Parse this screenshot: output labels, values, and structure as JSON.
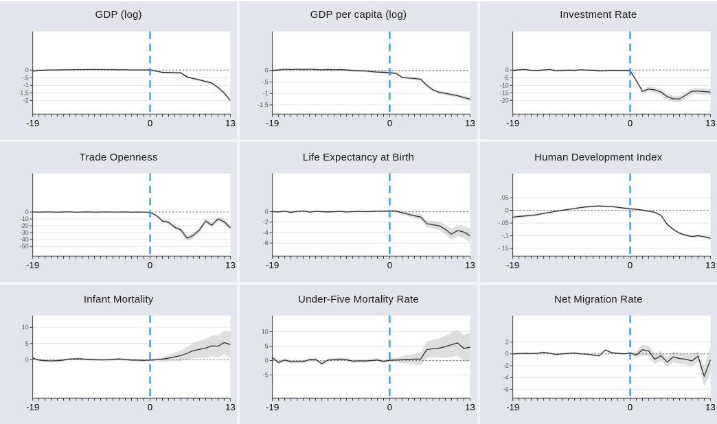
{
  "style": {
    "background": "#e2e5ec",
    "divider": "#f1f4f8",
    "plot_bg": "#ffffff",
    "grid": "#e6e6e6",
    "band": "#bdbdbd",
    "line": "#2d2d2d",
    "zero_line": "#7a7a7a",
    "event_line": "#1E90FF",
    "axis": "#3a3a3a",
    "xtick_text": "#000000",
    "ytick_text": "#555555"
  },
  "chart_data": {
    "type": "line",
    "x_min": -19,
    "x_max": 13,
    "x_labeled": [
      {
        "v": -19,
        "label": "-19"
      },
      {
        "v": 0,
        "label": "0"
      },
      {
        "v": 13,
        "label": "13"
      }
    ],
    "event_line_x": 0,
    "ref_line_y": 0,
    "grid": "horizontal only",
    "legend": "none",
    "panels": [
      {
        "title": "GDP (log)",
        "ylim": [
          2.55,
          -2.9
        ],
        "yticks": [
          {
            "v": 0,
            "label": "0"
          },
          {
            "v": -0.5,
            "label": "-.5"
          },
          {
            "v": -1,
            "label": "-1"
          },
          {
            "v": -1.5,
            "label": "-1.5"
          },
          {
            "v": -2,
            "label": "-2"
          }
        ],
        "values": [
          -0.07,
          -0.02,
          0,
          0.01,
          0.01,
          0.02,
          0.02,
          0.03,
          0.03,
          0.04,
          0.04,
          0.04,
          0.03,
          0.03,
          0.02,
          0.02,
          0.01,
          0.01,
          0.01,
          0.02,
          -0.07,
          -0.15,
          -0.16,
          -0.17,
          -0.18,
          -0.45,
          -0.55,
          -0.65,
          -0.75,
          -0.85,
          -1.15,
          -1.5,
          -2.0
        ],
        "ci": [
          0.06,
          0.05,
          0.05,
          0.05,
          0.05,
          0.05,
          0.05,
          0.05,
          0.05,
          0.05,
          0.05,
          0.05,
          0.05,
          0.05,
          0.05,
          0.05,
          0.05,
          0.05,
          0.05,
          0.05,
          0.06,
          0.07,
          0.07,
          0.07,
          0.07,
          0.08,
          0.08,
          0.08,
          0.09,
          0.09,
          0.09,
          0.1,
          0.1
        ]
      },
      {
        "title": "GDP per capita (log)",
        "ylim": [
          1.7,
          -1.9
        ],
        "yticks": [
          {
            "v": 0,
            "label": "0"
          },
          {
            "v": -0.5,
            "label": "-.5"
          },
          {
            "v": -1,
            "label": "-1"
          },
          {
            "v": -1.5,
            "label": "-1.5"
          }
        ],
        "values": [
          0,
          0.02,
          0.05,
          0.04,
          0.05,
          0.04,
          0.05,
          0.04,
          0.03,
          0.04,
          0.03,
          0.04,
          0.02,
          0,
          -0.01,
          -0.02,
          -0.05,
          -0.07,
          -0.08,
          -0.1,
          -0.12,
          -0.3,
          -0.33,
          -0.35,
          -0.38,
          -0.65,
          -0.85,
          -0.95,
          -1,
          -1.05,
          -1.1,
          -1.18,
          -1.25
        ],
        "ci": [
          0.05,
          0.05,
          0.05,
          0.05,
          0.05,
          0.05,
          0.05,
          0.05,
          0.05,
          0.05,
          0.05,
          0.05,
          0.05,
          0.05,
          0.05,
          0.05,
          0.05,
          0.05,
          0.05,
          0.05,
          0.06,
          0.06,
          0.06,
          0.06,
          0.07,
          0.07,
          0.07,
          0.07,
          0.07,
          0.07,
          0.07,
          0.08,
          0.08
        ]
      },
      {
        "title": "Investment Rate",
        "ylim": [
          25.5,
          -29
        ],
        "yticks": [
          {
            "v": 0,
            "label": "0"
          },
          {
            "v": -5,
            "label": "-5"
          },
          {
            "v": -10,
            "label": "-10"
          },
          {
            "v": -15,
            "label": "-15"
          },
          {
            "v": -20,
            "label": "-20"
          }
        ],
        "values": [
          -0.3,
          0.2,
          0.4,
          -0.2,
          -0.3,
          0.1,
          0.4,
          -0.4,
          -0.3,
          0,
          -0.2,
          0.2,
          0,
          -0.1,
          -0.5,
          -0.4,
          -0.2,
          -0.3,
          -0.2,
          -0.3,
          -7,
          -14,
          -12.5,
          -13,
          -14.5,
          -17.5,
          -19,
          -19,
          -16.5,
          -14,
          -13.8,
          -14.2,
          -14.5
        ],
        "ci": [
          0.5,
          0.5,
          0.5,
          0.5,
          0.5,
          0.5,
          0.5,
          0.5,
          0.5,
          0.5,
          0.5,
          0.5,
          0.5,
          0.5,
          0.5,
          0.5,
          0.5,
          0.5,
          0.5,
          0.5,
          1.2,
          1.5,
          1.6,
          1.7,
          1.8,
          1.9,
          2,
          2,
          2,
          2,
          2,
          2,
          2.2
        ]
      },
      {
        "title": "Trade Openness",
        "ylim": [
          56,
          -64
        ],
        "yticks": [
          {
            "v": 0,
            "label": "0"
          },
          {
            "v": -10,
            "label": "-10"
          },
          {
            "v": -20,
            "label": "-20"
          },
          {
            "v": -30,
            "label": "-30"
          },
          {
            "v": -40,
            "label": "-40"
          },
          {
            "v": -50,
            "label": "-50"
          }
        ],
        "values": [
          0.2,
          -0.1,
          0.1,
          0,
          -0.2,
          0.1,
          0.3,
          -0.2,
          0,
          0.1,
          -0.1,
          0,
          0.2,
          -0.1,
          0,
          0.1,
          -0.2,
          0,
          -0.1,
          -0.5,
          -5,
          -13,
          -15,
          -22,
          -26,
          -38,
          -34,
          -26,
          -13,
          -19,
          -10,
          -14,
          -23
        ],
        "ci": [
          0.8,
          0.8,
          0.8,
          0.8,
          0.8,
          0.8,
          0.8,
          0.8,
          0.8,
          0.8,
          0.8,
          0.8,
          0.8,
          0.8,
          0.8,
          0.8,
          0.8,
          0.8,
          0.8,
          0.8,
          2,
          2.5,
          3,
          3,
          3.5,
          4,
          4,
          4,
          3.5,
          3.5,
          3.5,
          3.5,
          4
        ]
      },
      {
        "title": "Life Expectancy at Birth",
        "ylim": [
          7.3,
          -8.5
        ],
        "yticks": [
          {
            "v": 0,
            "label": "0"
          },
          {
            "v": -2,
            "label": "-2"
          },
          {
            "v": -4,
            "label": "-4"
          },
          {
            "v": -6,
            "label": "-6"
          }
        ],
        "values": [
          0,
          -0.05,
          0.1,
          -0.15,
          0.05,
          0.15,
          -0.1,
          0.05,
          0,
          -0.05,
          0,
          0.05,
          -0.05,
          0,
          0.05,
          0,
          0.05,
          0.1,
          0.1,
          0.15,
          0.1,
          -0.2,
          -0.5,
          -0.8,
          -1,
          -2.3,
          -2.5,
          -2.7,
          -3.4,
          -4.3,
          -3.6,
          -3.9,
          -4.6
        ],
        "ci": [
          0.15,
          0.15,
          0.15,
          0.15,
          0.15,
          0.15,
          0.15,
          0.15,
          0.15,
          0.15,
          0.15,
          0.15,
          0.15,
          0.15,
          0.15,
          0.15,
          0.15,
          0.15,
          0.15,
          0.15,
          0.3,
          0.35,
          0.4,
          0.45,
          0.5,
          0.6,
          0.7,
          0.8,
          0.9,
          1,
          1.1,
          1.2,
          1.3
        ]
      },
      {
        "title": "Human Development Index",
        "ylim": [
          0.145,
          -0.18
        ],
        "yticks": [
          {
            "v": 0.05,
            "label": ".05"
          },
          {
            "v": 0,
            "label": "0"
          },
          {
            "v": -0.05,
            "label": "-.05"
          },
          {
            "v": -0.1,
            "label": "-.1"
          },
          {
            "v": -0.15,
            "label": "-.15"
          }
        ],
        "values": [
          -0.027,
          -0.024,
          -0.022,
          -0.02,
          -0.017,
          -0.012,
          -0.008,
          -0.004,
          0,
          0.004,
          0.007,
          0.011,
          0.014,
          0.016,
          0.017,
          0.016,
          0.015,
          0.012,
          0.009,
          0.006,
          0.004,
          0.001,
          -0.003,
          -0.008,
          -0.02,
          -0.055,
          -0.075,
          -0.09,
          -0.098,
          -0.103,
          -0.1,
          -0.104,
          -0.11
        ],
        "ci": [
          0.007,
          0.006,
          0.005,
          0.005,
          0.005,
          0.004,
          0.004,
          0.004,
          0.004,
          0.004,
          0.004,
          0.004,
          0.004,
          0.004,
          0.004,
          0.004,
          0.004,
          0.004,
          0.004,
          0.004,
          0.004,
          0.004,
          0.004,
          0.004,
          0.004,
          0.005,
          0.005,
          0.005,
          0.005,
          0.005,
          0.005,
          0.006,
          0.006
        ]
      },
      {
        "title": "Infant Mortality",
        "ylim": [
          13.7,
          -11.9
        ],
        "yticks": [
          {
            "v": 10,
            "label": "10"
          },
          {
            "v": 5,
            "label": "5"
          },
          {
            "v": 0,
            "label": "0"
          }
        ],
        "values": [
          0.5,
          -0.1,
          -0.3,
          -0.35,
          -0.3,
          -0.1,
          0.2,
          0.3,
          0.25,
          0.1,
          0,
          -0.05,
          -0.05,
          0.1,
          0.25,
          0.05,
          -0.1,
          -0.15,
          -0.2,
          -0.15,
          0,
          0.2,
          0.5,
          0.9,
          1.3,
          2,
          2.8,
          3.2,
          3.6,
          4.3,
          4.2,
          5.3,
          4.7
        ],
        "ci": [
          0.4,
          0.4,
          0.4,
          0.4,
          0.4,
          0.4,
          0.4,
          0.4,
          0.4,
          0.4,
          0.4,
          0.4,
          0.4,
          0.4,
          0.4,
          0.4,
          0.4,
          0.4,
          0.4,
          0.4,
          0.5,
          0.7,
          1,
          1.3,
          1.6,
          2,
          2.3,
          2.6,
          2.9,
          3.2,
          3.4,
          3.6,
          4
        ]
      },
      {
        "title": "Under-Five Mortality Rate",
        "ylim": [
          15.6,
          -13
        ],
        "yticks": [
          {
            "v": 10,
            "label": "10"
          },
          {
            "v": 5,
            "label": "5"
          },
          {
            "v": 0,
            "label": "0"
          },
          {
            "v": -5,
            "label": "-5"
          }
        ],
        "values": [
          1,
          -0.7,
          0.2,
          -0.4,
          -0.3,
          -0.35,
          0.3,
          0.4,
          -1.1,
          0.2,
          0.3,
          0.5,
          0.3,
          -0.2,
          -0.1,
          -0.15,
          0,
          0.2,
          -0.3,
          0.1,
          0.2,
          0.3,
          0.4,
          0.5,
          0.5,
          3.8,
          4.1,
          4.3,
          4.8,
          5.5,
          6.1,
          4.2,
          4.6
        ],
        "ci": [
          0.6,
          0.6,
          0.6,
          0.6,
          0.6,
          0.6,
          0.6,
          0.6,
          0.6,
          0.6,
          0.6,
          0.6,
          0.6,
          0.6,
          0.6,
          0.6,
          0.6,
          0.6,
          0.6,
          0.6,
          0.8,
          1.2,
          1.5,
          1.8,
          2.2,
          2.8,
          3,
          3.3,
          3.8,
          4.2,
          4.4,
          4.6,
          5
        ]
      },
      {
        "title": "Net Migration Rate",
        "ylim": [
          6.5,
          -7.5
        ],
        "yticks": [
          {
            "v": 2,
            "label": "2"
          },
          {
            "v": 0,
            "label": "0"
          },
          {
            "v": -2,
            "label": "-2"
          },
          {
            "v": -4,
            "label": "-4"
          },
          {
            "v": -6,
            "label": "-6"
          }
        ],
        "values": [
          0,
          0.05,
          0.1,
          0.05,
          0.1,
          0.25,
          0.1,
          -0.1,
          0,
          0.1,
          0.15,
          0,
          -0.05,
          -0.2,
          -0.35,
          0.65,
          0.2,
          0.1,
          0,
          0.15,
          -0.2,
          0.7,
          0.5,
          -0.9,
          -0.3,
          -1.4,
          -0.5,
          -0.8,
          -0.9,
          -1.2,
          -0.4,
          -3.8,
          -1
        ],
        "ci": [
          0.15,
          0.15,
          0.15,
          0.15,
          0.15,
          0.15,
          0.15,
          0.15,
          0.15,
          0.15,
          0.15,
          0.15,
          0.15,
          0.15,
          0.15,
          0.15,
          0.15,
          0.15,
          0.15,
          0.15,
          0.6,
          0.9,
          0.9,
          0.9,
          0.8,
          0.8,
          0.9,
          0.9,
          0.9,
          1,
          0.9,
          1.7,
          2.2
        ]
      }
    ]
  }
}
